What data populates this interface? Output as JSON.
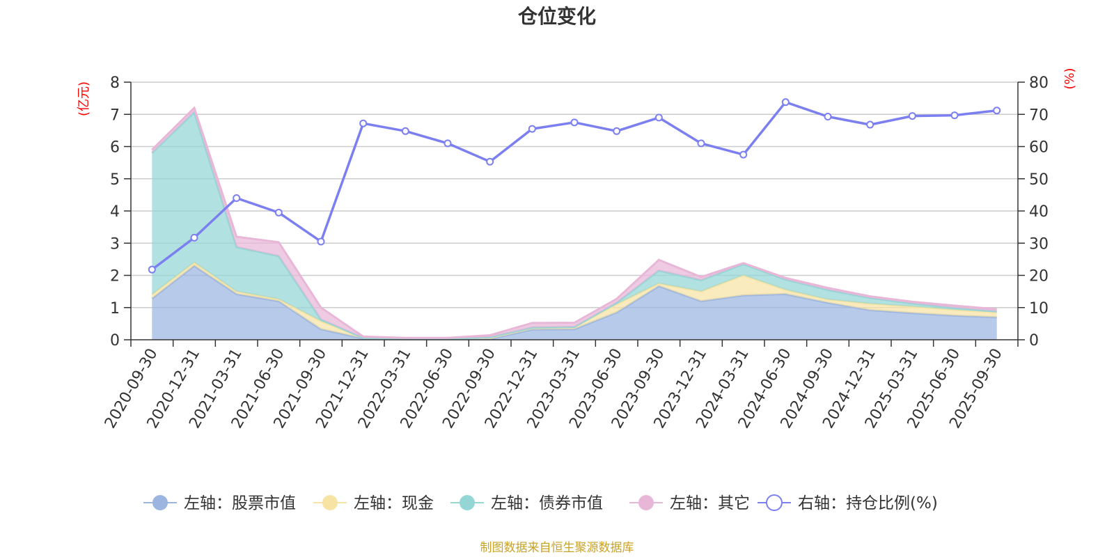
{
  "chart_data": {
    "type": "area",
    "title": "仓位变化",
    "left_axis_unit": "(亿元)",
    "right_axis_unit": "(%)",
    "ylim_left": [
      0,
      8
    ],
    "ylim_right": [
      0,
      80
    ],
    "yticks_left": [
      "0",
      "1",
      "2",
      "3",
      "4",
      "5",
      "6",
      "7",
      "8"
    ],
    "yticks_right": [
      "0",
      "10",
      "20",
      "30",
      "40",
      "50",
      "60",
      "70",
      "80"
    ],
    "grid": true,
    "legend_position": "bottom",
    "categories": [
      "2020-09-30",
      "2020-12-31",
      "2021-03-31",
      "2021-06-30",
      "2021-09-30",
      "2021-12-31",
      "2022-03-31",
      "2022-06-30",
      "2022-09-30",
      "2022-12-31",
      "2023-03-31",
      "2023-06-30",
      "2023-09-30",
      "2023-12-31",
      "2024-03-31",
      "2024-06-30",
      "2024-09-30",
      "2024-12-31",
      "2025-03-31",
      "2025-06-30",
      "2025-09-30"
    ],
    "series": [
      {
        "name": "左轴：股票市值",
        "axis": "left",
        "kind": "stacked-area",
        "color": "#9bb5e0",
        "values": [
          1.28,
          2.3,
          1.42,
          1.2,
          0.33,
          0.04,
          0.02,
          0.02,
          0.02,
          0.32,
          0.33,
          0.85,
          1.67,
          1.2,
          1.38,
          1.42,
          1.15,
          0.92,
          0.83,
          0.75,
          0.7
        ]
      },
      {
        "name": "左轴：现金",
        "axis": "left",
        "kind": "stacked-area",
        "color": "#f7e3a3",
        "values": [
          0.12,
          0.1,
          0.08,
          0.06,
          0.25,
          0.02,
          0.01,
          0.01,
          0.06,
          0.06,
          0.07,
          0.25,
          0.08,
          0.3,
          0.62,
          0.13,
          0.1,
          0.2,
          0.2,
          0.18,
          0.15
        ]
      },
      {
        "name": "左轴：债券市值",
        "axis": "left",
        "kind": "stacked-area",
        "color": "#94d5d5",
        "values": [
          4.4,
          4.67,
          1.38,
          1.34,
          0.05,
          0.0,
          0.0,
          0.0,
          0.0,
          0.0,
          0.0,
          0.05,
          0.4,
          0.35,
          0.35,
          0.32,
          0.3,
          0.18,
          0.1,
          0.06,
          0.03
        ]
      },
      {
        "name": "左轴：其它",
        "axis": "left",
        "kind": "stacked-area",
        "color": "#e8b7d8",
        "values": [
          0.1,
          0.13,
          0.32,
          0.43,
          0.37,
          0.04,
          0.03,
          0.03,
          0.06,
          0.14,
          0.13,
          0.12,
          0.33,
          0.1,
          0.03,
          0.05,
          0.06,
          0.05,
          0.05,
          0.07,
          0.07
        ]
      },
      {
        "name": "右轴：持仓比例(%)",
        "axis": "right",
        "kind": "line",
        "color": "#7b7ff0",
        "values": [
          21.8,
          31.7,
          44.0,
          39.5,
          30.5,
          67.2,
          64.8,
          61.0,
          55.3,
          65.5,
          67.5,
          64.8,
          69.0,
          61.0,
          57.5,
          73.8,
          69.3,
          66.8,
          69.5,
          69.7,
          71.2
        ]
      }
    ],
    "source_note": "制图数据来自恒生聚源数据库"
  },
  "colors": {
    "axis": "#333333",
    "grid": "#cccccc",
    "unit_label": "#ff0000",
    "source_note": "#c9a227"
  }
}
